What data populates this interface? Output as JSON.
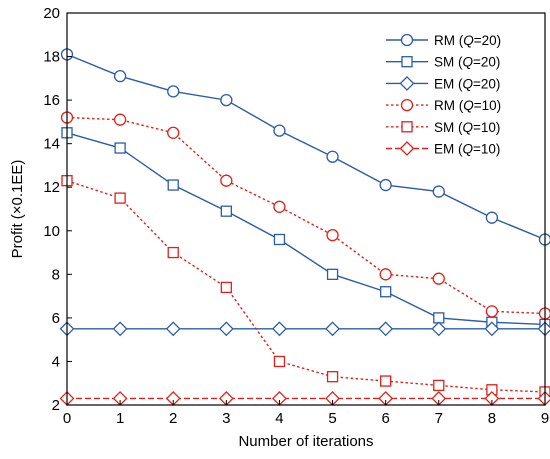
{
  "chart_data": {
    "type": "line",
    "title": "",
    "xlabel": "Number of iterations",
    "ylabel": "Profit (×0.1EE)",
    "x": [
      0,
      1,
      2,
      3,
      4,
      5,
      6,
      7,
      8,
      9
    ],
    "xlim": [
      0,
      9
    ],
    "ylim": [
      2,
      20
    ],
    "xticks": [
      0,
      1,
      2,
      3,
      4,
      5,
      6,
      7,
      8,
      9
    ],
    "yticks": [
      2,
      4,
      6,
      8,
      10,
      12,
      14,
      16,
      18,
      20
    ],
    "grid": false,
    "legend_position": "top-right",
    "series": [
      {
        "name": "RM (Q=20)",
        "label_prefix": "RM (",
        "label_var": "Q",
        "label_suffix": "=20)",
        "color": "#2a5caa",
        "dash": "solid",
        "marker": "circle",
        "values": [
          18.1,
          17.1,
          16.4,
          16.0,
          14.6,
          13.4,
          12.1,
          11.8,
          10.6,
          9.6
        ]
      },
      {
        "name": "SM (Q=20)",
        "label_prefix": "SM (",
        "label_var": "Q",
        "label_suffix": "=20)",
        "color": "#2a5caa",
        "dash": "solid",
        "marker": "square",
        "values": [
          14.5,
          13.8,
          12.1,
          10.9,
          9.6,
          8.0,
          7.2,
          6.0,
          5.8,
          5.7
        ]
      },
      {
        "name": "EM (Q=20)",
        "label_prefix": "EM (",
        "label_var": "Q",
        "label_suffix": "=20)",
        "color": "#2a5caa",
        "dash": "solid",
        "marker": "diamond",
        "values": [
          5.5,
          5.5,
          5.5,
          5.5,
          5.5,
          5.5,
          5.5,
          5.5,
          5.5,
          5.5
        ]
      },
      {
        "name": "RM (Q=10)",
        "label_prefix": "RM (",
        "label_var": "Q",
        "label_suffix": "=10)",
        "color": "#e0201b",
        "dash": "dotted",
        "marker": "circle",
        "values": [
          15.2,
          15.1,
          14.5,
          12.3,
          11.1,
          9.8,
          8.0,
          7.8,
          6.3,
          6.2
        ]
      },
      {
        "name": "SM (Q=10)",
        "label_prefix": "SM (",
        "label_var": "Q",
        "label_suffix": "=10)",
        "color": "#e0201b",
        "dash": "dotted",
        "marker": "square",
        "values": [
          12.3,
          11.5,
          9.0,
          7.4,
          4.0,
          3.3,
          3.1,
          2.9,
          2.7,
          2.6
        ]
      },
      {
        "name": "EM (Q=10)",
        "label_prefix": "EM (",
        "label_var": "Q",
        "label_suffix": "=10)",
        "color": "#e0201b",
        "dash": "dashed",
        "marker": "diamond",
        "values": [
          2.3,
          2.3,
          2.3,
          2.3,
          2.3,
          2.3,
          2.3,
          2.3,
          2.3,
          2.3
        ]
      }
    ]
  }
}
